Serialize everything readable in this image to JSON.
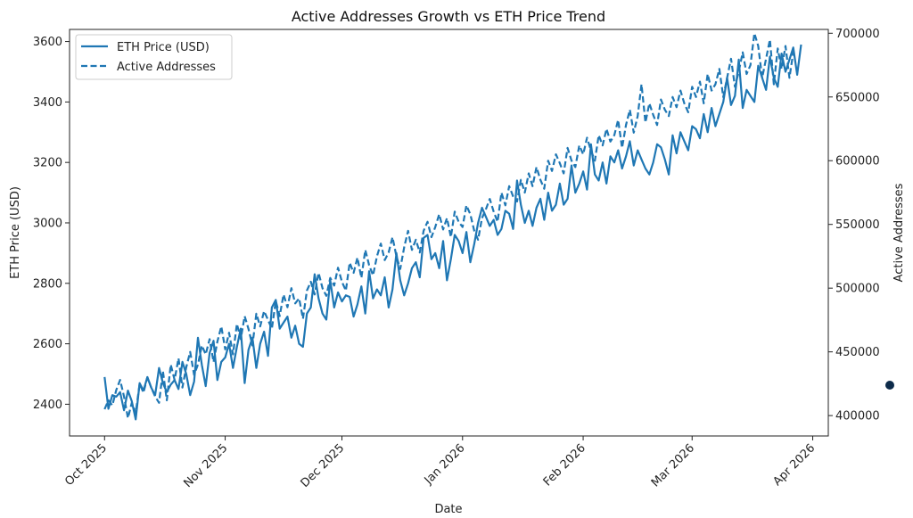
{
  "chart_data": {
    "type": "line",
    "title": "Active Addresses Growth vs ETH Price Trend",
    "xlabel": "Date",
    "ylabel_left": "ETH Price (USD)",
    "ylabel_right": "Active Addresses",
    "x_start": "2025-10-01",
    "x_frequency": "daily",
    "x_range": [
      "2025-09-22",
      "2026-04-05"
    ],
    "x_ticks": [
      {
        "label": "Oct 2025",
        "date": "2025-10-01"
      },
      {
        "label": "Nov 2025",
        "date": "2025-11-01"
      },
      {
        "label": "Dec 2025",
        "date": "2025-12-01"
      },
      {
        "label": "Jan 2026",
        "date": "2026-01-01"
      },
      {
        "label": "Feb 2026",
        "date": "2026-02-01"
      },
      {
        "label": "Mar 2026",
        "date": "2026-03-01"
      },
      {
        "label": "Apr 2026",
        "date": "2026-04-01"
      }
    ],
    "ylim_left": [
      2295,
      3640
    ],
    "yticks_left": [
      2400,
      2600,
      2800,
      3000,
      3200,
      3400,
      3600
    ],
    "ylim_right": [
      384000,
      703000
    ],
    "yticks_right": [
      400000,
      450000,
      500000,
      550000,
      600000,
      650000,
      700000
    ],
    "ytick_labels_right": [
      "400000",
      "450000",
      "500000",
      "550000",
      "600000",
      "650000",
      "700000"
    ],
    "grid": false,
    "legend_position": "top-left",
    "series": [
      {
        "name": "ETH Price (USD)",
        "axis": "left",
        "style": "solid",
        "color": "#1f77b4",
        "values": [
          2490,
          2385,
          2430,
          2425,
          2440,
          2380,
          2445,
          2410,
          2350,
          2470,
          2445,
          2490,
          2455,
          2430,
          2520,
          2470,
          2440,
          2465,
          2480,
          2450,
          2540,
          2500,
          2430,
          2475,
          2620,
          2530,
          2460,
          2570,
          2610,
          2480,
          2540,
          2555,
          2600,
          2520,
          2590,
          2650,
          2470,
          2580,
          2620,
          2520,
          2600,
          2640,
          2560,
          2720,
          2745,
          2650,
          2670,
          2690,
          2620,
          2660,
          2600,
          2590,
          2700,
          2720,
          2830,
          2750,
          2700,
          2680,
          2810,
          2720,
          2770,
          2740,
          2760,
          2755,
          2690,
          2730,
          2790,
          2700,
          2840,
          2750,
          2780,
          2760,
          2820,
          2720,
          2780,
          2900,
          2810,
          2760,
          2800,
          2850,
          2870,
          2820,
          2950,
          2960,
          2880,
          2900,
          2850,
          2940,
          2810,
          2880,
          2960,
          2940,
          2900,
          2970,
          2870,
          2930,
          3000,
          3050,
          3020,
          2990,
          3010,
          2960,
          2980,
          3040,
          3030,
          2980,
          3140,
          3060,
          3000,
          3040,
          2990,
          3050,
          3080,
          3010,
          3100,
          3040,
          3060,
          3130,
          3060,
          3080,
          3190,
          3100,
          3130,
          3170,
          3110,
          3260,
          3160,
          3140,
          3200,
          3130,
          3220,
          3200,
          3240,
          3180,
          3220,
          3270,
          3190,
          3240,
          3210,
          3180,
          3160,
          3200,
          3260,
          3250,
          3210,
          3160,
          3290,
          3230,
          3300,
          3270,
          3240,
          3320,
          3310,
          3280,
          3360,
          3300,
          3380,
          3320,
          3360,
          3400,
          3480,
          3390,
          3420,
          3540,
          3380,
          3440,
          3420,
          3400,
          3520,
          3480,
          3440,
          3550,
          3480,
          3450,
          3560,
          3500,
          3540,
          3580,
          3490,
          3590
        ],
        "last_value": 3590
      },
      {
        "name": "Active Addresses",
        "axis": "right",
        "style": "dashed",
        "color": "#1f77b4",
        "values": [
          405000,
          412000,
          408000,
          420000,
          428000,
          415000,
          398000,
          410000,
          402000,
          425000,
          418000,
          430000,
          422000,
          415000,
          410000,
          435000,
          412000,
          440000,
          428000,
          445000,
          422000,
          438000,
          450000,
          432000,
          440000,
          455000,
          448000,
          460000,
          442000,
          458000,
          470000,
          452000,
          465000,
          448000,
          472000,
          460000,
          478000,
          468000,
          455000,
          480000,
          470000,
          482000,
          475000,
          468000,
          490000,
          478000,
          495000,
          485000,
          500000,
          488000,
          492000,
          476000,
          498000,
          505000,
          495000,
          512000,
          500000,
          494000,
          508000,
          502000,
          516000,
          505000,
          498000,
          520000,
          512000,
          524000,
          508000,
          530000,
          518000,
          510000,
          525000,
          535000,
          522000,
          528000,
          540000,
          525000,
          515000,
          532000,
          545000,
          530000,
          538000,
          528000,
          545000,
          552000,
          540000,
          548000,
          558000,
          546000,
          555000,
          540000,
          560000,
          552000,
          548000,
          565000,
          558000,
          545000,
          538000,
          555000,
          562000,
          570000,
          560000,
          552000,
          575000,
          565000,
          580000,
          572000,
          568000,
          585000,
          575000,
          590000,
          580000,
          595000,
          585000,
          578000,
          600000,
          592000,
          605000,
          598000,
          590000,
          610000,
          600000,
          595000,
          612000,
          605000,
          618000,
          608000,
          600000,
          620000,
          612000,
          625000,
          615000,
          620000,
          632000,
          610000,
          628000,
          640000,
          622000,
          635000,
          660000,
          630000,
          645000,
          636000,
          628000,
          648000,
          640000,
          635000,
          650000,
          642000,
          655000,
          645000,
          638000,
          658000,
          650000,
          662000,
          645000,
          668000,
          655000,
          660000,
          672000,
          650000,
          665000,
          680000,
          658000,
          670000,
          685000,
          668000,
          675000,
          700000,
          690000,
          665000,
          680000,
          695000,
          660000,
          688000,
          672000,
          690000,
          665000,
          685000
        ],
        "last_value": 685000
      }
    ]
  },
  "legend": {
    "items": [
      {
        "label": "ETH Price (USD)",
        "style": "solid"
      },
      {
        "label": "Active Addresses",
        "style": "dashed"
      }
    ]
  },
  "colors": {
    "line": "#1f77b4",
    "cursor": "#0d2b4a",
    "axis": "#222222"
  }
}
